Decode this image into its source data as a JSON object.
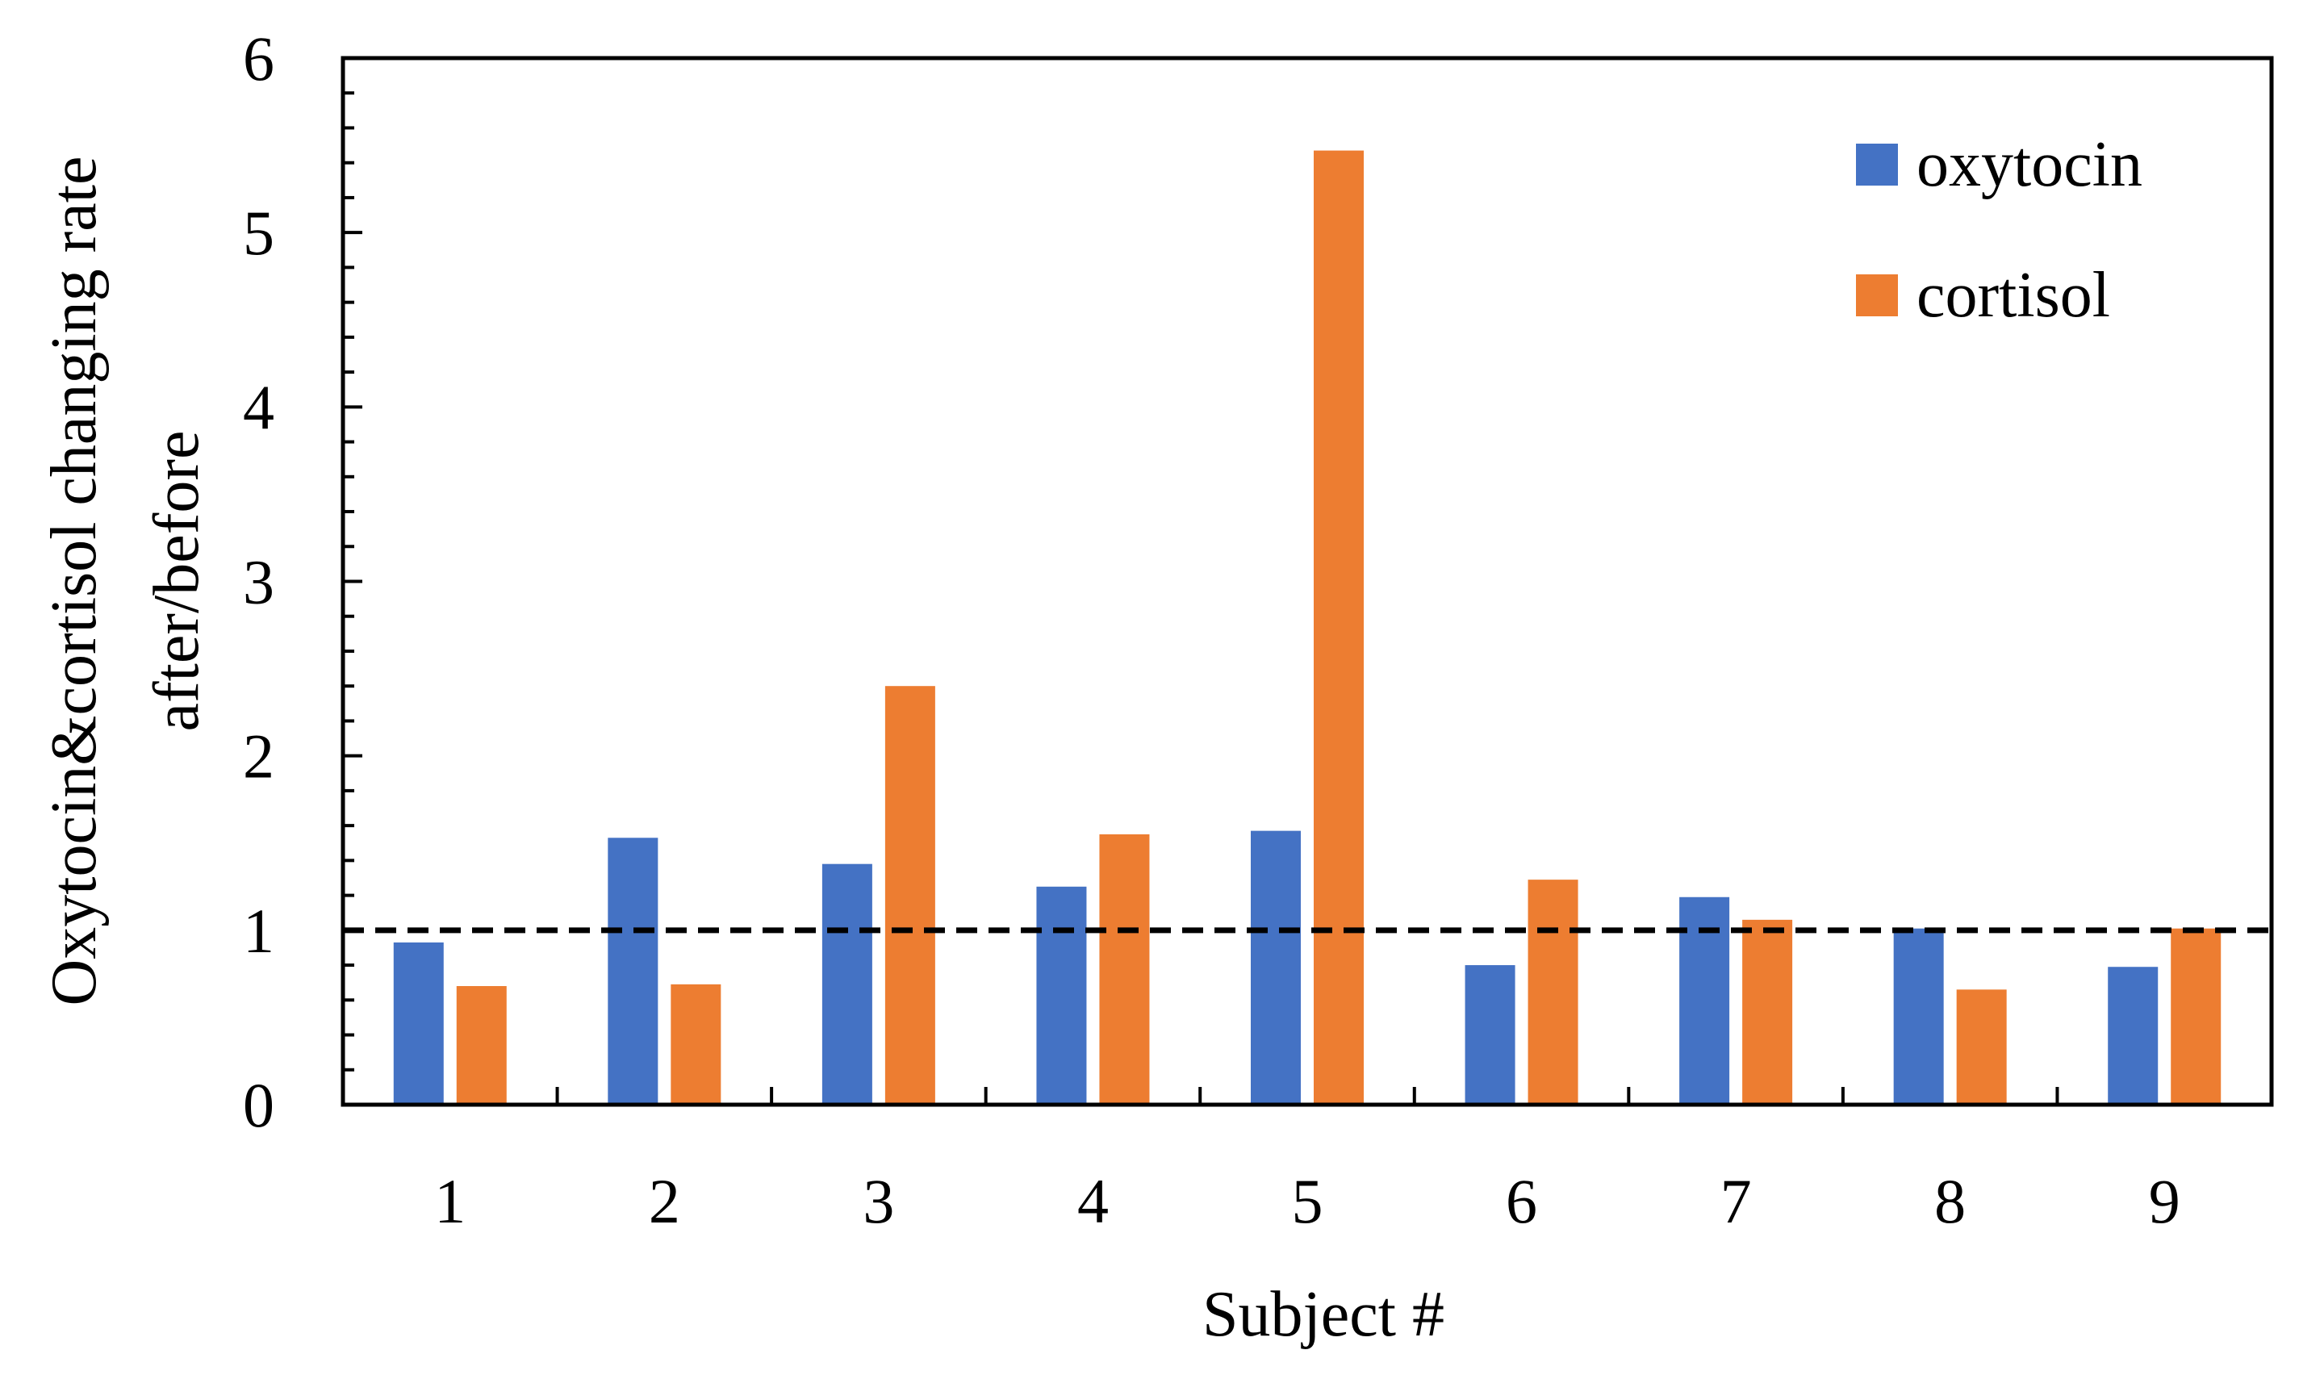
{
  "chart_data": {
    "type": "bar",
    "categories": [
      "1",
      "2",
      "3",
      "4",
      "5",
      "6",
      "7",
      "8",
      "9"
    ],
    "series": [
      {
        "name": "oxytocin",
        "color": "#4472C4",
        "values": [
          0.93,
          1.53,
          1.38,
          1.25,
          1.57,
          0.8,
          1.19,
          1.01,
          0.79
        ]
      },
      {
        "name": "cortisol",
        "color": "#ED7D31",
        "values": [
          0.68,
          0.69,
          2.4,
          1.55,
          5.47,
          1.29,
          1.06,
          0.66,
          1.01
        ]
      }
    ],
    "reference_line": {
      "y": 1,
      "style": "dashed",
      "color": "#000000"
    },
    "yticks": [
      "0",
      "1",
      "2",
      "3",
      "4",
      "5",
      "6"
    ],
    "title": "",
    "xlabel": "Subject #",
    "ylabel_lines": [
      "Oxytocin&cortisol changing rate",
      "after/before"
    ],
    "ylim": [
      0,
      6
    ],
    "grid": false,
    "legend_position": "top-right"
  }
}
